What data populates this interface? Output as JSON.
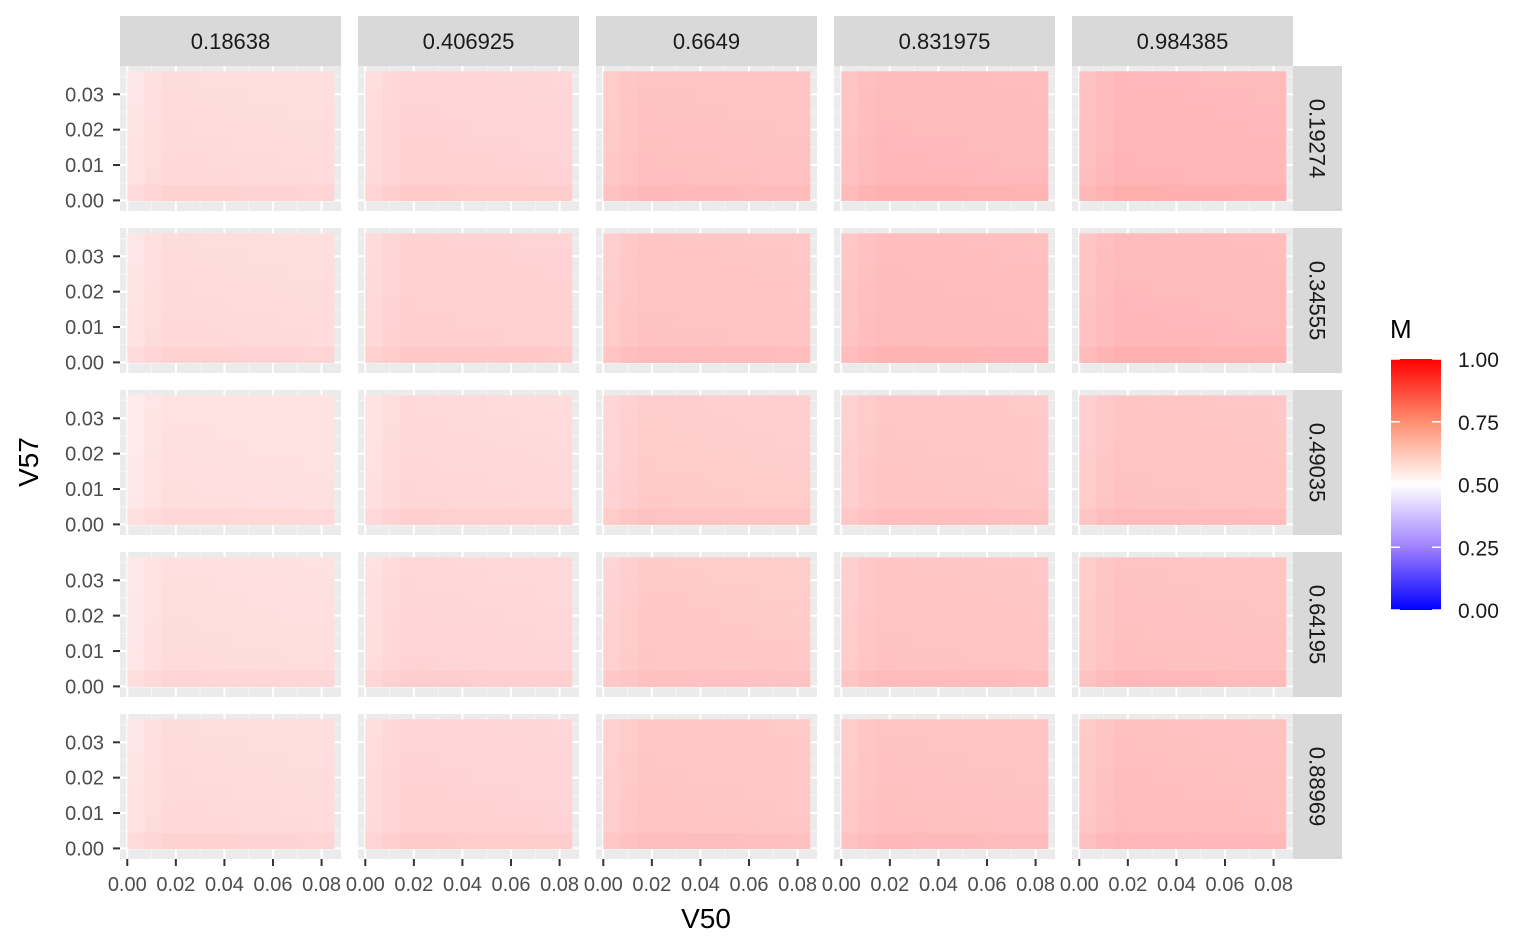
{
  "chart_data": {
    "type": "heatmap",
    "facet_cols": [
      "0.18638",
      "0.406925",
      "0.6649",
      "0.831975",
      "0.984385"
    ],
    "facet_rows": [
      "0.19274",
      "0.34555",
      "0.49035",
      "0.64195",
      "0.88969"
    ],
    "xlabel": "V50",
    "ylabel": "V57",
    "x_ticks": [
      "0.00",
      "0.02",
      "0.04",
      "0.06",
      "0.08"
    ],
    "y_ticks": [
      "0.00",
      "0.01",
      "0.02",
      "0.03"
    ],
    "xlim": [
      -0.003,
      0.088
    ],
    "ylim": [
      -0.003,
      0.038
    ],
    "grid": true,
    "legend": {
      "title": "M",
      "position": "right",
      "ticks": [
        "0.00",
        "0.25",
        "0.50",
        "0.75",
        "1.00"
      ],
      "colors": {
        "low": "#0000ff",
        "mid": "#ffffff",
        "high": "#ff0000"
      },
      "midpoint": 0.5
    },
    "panel_values": [
      [
        0.575,
        0.59,
        0.625,
        0.64,
        0.645
      ],
      [
        0.575,
        0.595,
        0.62,
        0.635,
        0.64
      ],
      [
        0.565,
        0.58,
        0.605,
        0.615,
        0.62
      ],
      [
        0.57,
        0.585,
        0.61,
        0.62,
        0.625
      ],
      [
        0.575,
        0.59,
        0.615,
        0.625,
        0.63
      ]
    ]
  }
}
